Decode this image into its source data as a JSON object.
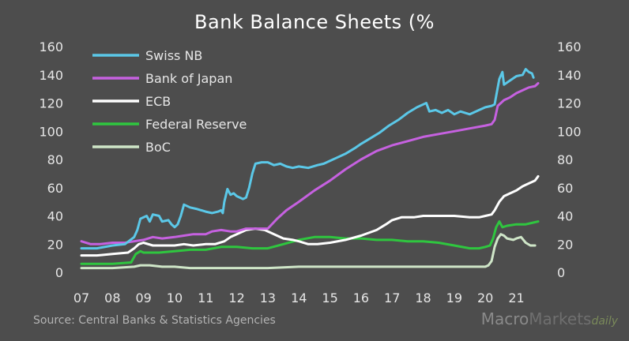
{
  "chart_data": {
    "type": "line",
    "title": "Bank Balance Sheets  (%",
    "source": "Source: Central Banks & Statistics Agencies",
    "watermark": "MacroMarketsdaily",
    "xlabel": "",
    "ylabel": "",
    "x_ticks": [
      "07",
      "08",
      "09",
      "10",
      "11",
      "12",
      "13",
      "14",
      "15",
      "16",
      "17",
      "18",
      "19",
      "20",
      "21"
    ],
    "x_range": [
      2007,
      2021.75
    ],
    "ylim": [
      0,
      160
    ],
    "y_ticks": [
      0,
      20,
      40,
      60,
      80,
      100,
      120,
      140,
      160
    ],
    "grid": false,
    "legend_position": "top-left",
    "series": [
      {
        "name": "Swiss NB",
        "color": "#5bc8e8",
        "points": [
          [
            2007.0,
            17
          ],
          [
            2007.5,
            17
          ],
          [
            2008.0,
            19
          ],
          [
            2008.4,
            20
          ],
          [
            2008.7,
            25
          ],
          [
            2008.8,
            30
          ],
          [
            2008.9,
            38
          ],
          [
            2009.1,
            40
          ],
          [
            2009.2,
            36
          ],
          [
            2009.3,
            41
          ],
          [
            2009.5,
            40
          ],
          [
            2009.6,
            36
          ],
          [
            2009.8,
            37
          ],
          [
            2009.9,
            34
          ],
          [
            2010.0,
            32
          ],
          [
            2010.1,
            34
          ],
          [
            2010.2,
            40
          ],
          [
            2010.3,
            48
          ],
          [
            2010.5,
            46
          ],
          [
            2010.7,
            45
          ],
          [
            2011.0,
            43
          ],
          [
            2011.2,
            42
          ],
          [
            2011.4,
            43
          ],
          [
            2011.5,
            44
          ],
          [
            2011.55,
            42
          ],
          [
            2011.6,
            50
          ],
          [
            2011.7,
            59
          ],
          [
            2011.8,
            55
          ],
          [
            2011.9,
            56
          ],
          [
            2012.0,
            54
          ],
          [
            2012.2,
            52
          ],
          [
            2012.3,
            53
          ],
          [
            2012.4,
            60
          ],
          [
            2012.5,
            70
          ],
          [
            2012.6,
            77
          ],
          [
            2012.8,
            78
          ],
          [
            2013.0,
            78
          ],
          [
            2013.2,
            76
          ],
          [
            2013.4,
            77
          ],
          [
            2013.6,
            75
          ],
          [
            2013.8,
            74
          ],
          [
            2014.0,
            75
          ],
          [
            2014.3,
            74
          ],
          [
            2014.6,
            76
          ],
          [
            2014.8,
            77
          ],
          [
            2015.0,
            79
          ],
          [
            2015.2,
            81
          ],
          [
            2015.5,
            84
          ],
          [
            2015.8,
            88
          ],
          [
            2016.0,
            91
          ],
          [
            2016.3,
            95
          ],
          [
            2016.6,
            99
          ],
          [
            2016.9,
            104
          ],
          [
            2017.2,
            108
          ],
          [
            2017.5,
            113
          ],
          [
            2017.8,
            117
          ],
          [
            2018.0,
            119
          ],
          [
            2018.1,
            120
          ],
          [
            2018.2,
            114
          ],
          [
            2018.4,
            115
          ],
          [
            2018.6,
            113
          ],
          [
            2018.8,
            115
          ],
          [
            2019.0,
            112
          ],
          [
            2019.2,
            114
          ],
          [
            2019.5,
            112
          ],
          [
            2019.8,
            115
          ],
          [
            2020.0,
            117
          ],
          [
            2020.2,
            118
          ],
          [
            2020.3,
            119
          ],
          [
            2020.35,
            125
          ],
          [
            2020.45,
            137
          ],
          [
            2020.55,
            142
          ],
          [
            2020.6,
            133
          ],
          [
            2020.8,
            136
          ],
          [
            2021.0,
            139
          ],
          [
            2021.2,
            140
          ],
          [
            2021.3,
            144
          ],
          [
            2021.4,
            142
          ],
          [
            2021.5,
            141
          ],
          [
            2021.55,
            138
          ]
        ]
      },
      {
        "name": "Bank of Japan",
        "color": "#c661e0",
        "points": [
          [
            2007.0,
            22
          ],
          [
            2007.3,
            20
          ],
          [
            2007.6,
            20
          ],
          [
            2008.0,
            21
          ],
          [
            2008.4,
            21
          ],
          [
            2008.7,
            22
          ],
          [
            2009.0,
            23
          ],
          [
            2009.3,
            25
          ],
          [
            2009.6,
            24
          ],
          [
            2010.0,
            25
          ],
          [
            2010.3,
            26
          ],
          [
            2010.6,
            27
          ],
          [
            2011.0,
            27
          ],
          [
            2011.2,
            29
          ],
          [
            2011.5,
            30
          ],
          [
            2011.8,
            29
          ],
          [
            2012.0,
            29
          ],
          [
            2012.3,
            31
          ],
          [
            2012.6,
            31
          ],
          [
            2013.0,
            31
          ],
          [
            2013.3,
            38
          ],
          [
            2013.6,
            44
          ],
          [
            2014.0,
            50
          ],
          [
            2014.5,
            58
          ],
          [
            2015.0,
            65
          ],
          [
            2015.5,
            73
          ],
          [
            2016.0,
            80
          ],
          [
            2016.5,
            86
          ],
          [
            2017.0,
            90
          ],
          [
            2017.5,
            93
          ],
          [
            2018.0,
            96
          ],
          [
            2018.5,
            98
          ],
          [
            2019.0,
            100
          ],
          [
            2019.5,
            102
          ],
          [
            2020.0,
            104
          ],
          [
            2020.2,
            105
          ],
          [
            2020.3,
            108
          ],
          [
            2020.4,
            118
          ],
          [
            2020.6,
            122
          ],
          [
            2020.8,
            124
          ],
          [
            2021.0,
            127
          ],
          [
            2021.2,
            129
          ],
          [
            2021.4,
            131
          ],
          [
            2021.6,
            132
          ],
          [
            2021.7,
            134
          ]
        ]
      },
      {
        "name": "ECB",
        "color": "#ffffff",
        "points": [
          [
            2007.0,
            12
          ],
          [
            2007.5,
            12
          ],
          [
            2008.0,
            13
          ],
          [
            2008.5,
            14
          ],
          [
            2008.7,
            17
          ],
          [
            2008.85,
            20
          ],
          [
            2009.0,
            21
          ],
          [
            2009.3,
            19
          ],
          [
            2009.6,
            19
          ],
          [
            2010.0,
            19
          ],
          [
            2010.3,
            20
          ],
          [
            2010.6,
            19
          ],
          [
            2011.0,
            20
          ],
          [
            2011.3,
            20
          ],
          [
            2011.6,
            22
          ],
          [
            2011.8,
            25
          ],
          [
            2012.0,
            27
          ],
          [
            2012.3,
            30
          ],
          [
            2012.6,
            31
          ],
          [
            2012.9,
            30
          ],
          [
            2013.2,
            27
          ],
          [
            2013.5,
            24
          ],
          [
            2013.8,
            23
          ],
          [
            2014.0,
            22
          ],
          [
            2014.3,
            20
          ],
          [
            2014.6,
            20
          ],
          [
            2015.0,
            21
          ],
          [
            2015.5,
            23
          ],
          [
            2016.0,
            26
          ],
          [
            2016.5,
            30
          ],
          [
            2016.8,
            34
          ],
          [
            2017.0,
            37
          ],
          [
            2017.3,
            39
          ],
          [
            2017.7,
            39
          ],
          [
            2018.0,
            40
          ],
          [
            2018.5,
            40
          ],
          [
            2019.0,
            40
          ],
          [
            2019.5,
            39
          ],
          [
            2019.8,
            39
          ],
          [
            2020.0,
            40
          ],
          [
            2020.2,
            41
          ],
          [
            2020.3,
            44
          ],
          [
            2020.45,
            50
          ],
          [
            2020.6,
            54
          ],
          [
            2020.8,
            56
          ],
          [
            2021.0,
            58
          ],
          [
            2021.2,
            61
          ],
          [
            2021.4,
            63
          ],
          [
            2021.6,
            65
          ],
          [
            2021.7,
            68
          ]
        ]
      },
      {
        "name": "Federal Reserve",
        "color": "#2fc63f",
        "points": [
          [
            2007.0,
            6
          ],
          [
            2007.5,
            6
          ],
          [
            2008.0,
            6
          ],
          [
            2008.6,
            7
          ],
          [
            2008.75,
            13
          ],
          [
            2008.9,
            15
          ],
          [
            2009.0,
            14
          ],
          [
            2009.5,
            14
          ],
          [
            2010.0,
            15
          ],
          [
            2010.5,
            16
          ],
          [
            2011.0,
            16
          ],
          [
            2011.5,
            18
          ],
          [
            2012.0,
            18
          ],
          [
            2012.5,
            17
          ],
          [
            2013.0,
            17
          ],
          [
            2013.5,
            20
          ],
          [
            2014.0,
            23
          ],
          [
            2014.5,
            25
          ],
          [
            2015.0,
            25
          ],
          [
            2015.5,
            24
          ],
          [
            2016.0,
            24
          ],
          [
            2016.5,
            23
          ],
          [
            2017.0,
            23
          ],
          [
            2017.5,
            22
          ],
          [
            2018.0,
            22
          ],
          [
            2018.5,
            21
          ],
          [
            2019.0,
            19
          ],
          [
            2019.5,
            17
          ],
          [
            2019.8,
            17
          ],
          [
            2020.0,
            18
          ],
          [
            2020.15,
            19
          ],
          [
            2020.25,
            24
          ],
          [
            2020.35,
            32
          ],
          [
            2020.45,
            36
          ],
          [
            2020.55,
            32
          ],
          [
            2020.7,
            33
          ],
          [
            2021.0,
            34
          ],
          [
            2021.3,
            34
          ],
          [
            2021.5,
            35
          ],
          [
            2021.7,
            36
          ]
        ]
      },
      {
        "name": "BoC",
        "color": "#cfe6c8",
        "points": [
          [
            2007.0,
            3
          ],
          [
            2008.0,
            3
          ],
          [
            2008.7,
            4
          ],
          [
            2008.9,
            5
          ],
          [
            2009.2,
            5
          ],
          [
            2009.6,
            4
          ],
          [
            2010.0,
            4
          ],
          [
            2010.5,
            3
          ],
          [
            2011.0,
            3
          ],
          [
            2012.0,
            3
          ],
          [
            2013.0,
            3
          ],
          [
            2014.0,
            4
          ],
          [
            2015.0,
            4
          ],
          [
            2016.0,
            4
          ],
          [
            2017.0,
            4
          ],
          [
            2018.0,
            4
          ],
          [
            2019.0,
            4
          ],
          [
            2020.0,
            4
          ],
          [
            2020.1,
            5
          ],
          [
            2020.2,
            8
          ],
          [
            2020.3,
            18
          ],
          [
            2020.4,
            24
          ],
          [
            2020.5,
            27
          ],
          [
            2020.6,
            26
          ],
          [
            2020.7,
            24
          ],
          [
            2020.9,
            23
          ],
          [
            2021.0,
            24
          ],
          [
            2021.15,
            25
          ],
          [
            2021.3,
            21
          ],
          [
            2021.45,
            19
          ],
          [
            2021.6,
            19
          ]
        ]
      }
    ]
  }
}
